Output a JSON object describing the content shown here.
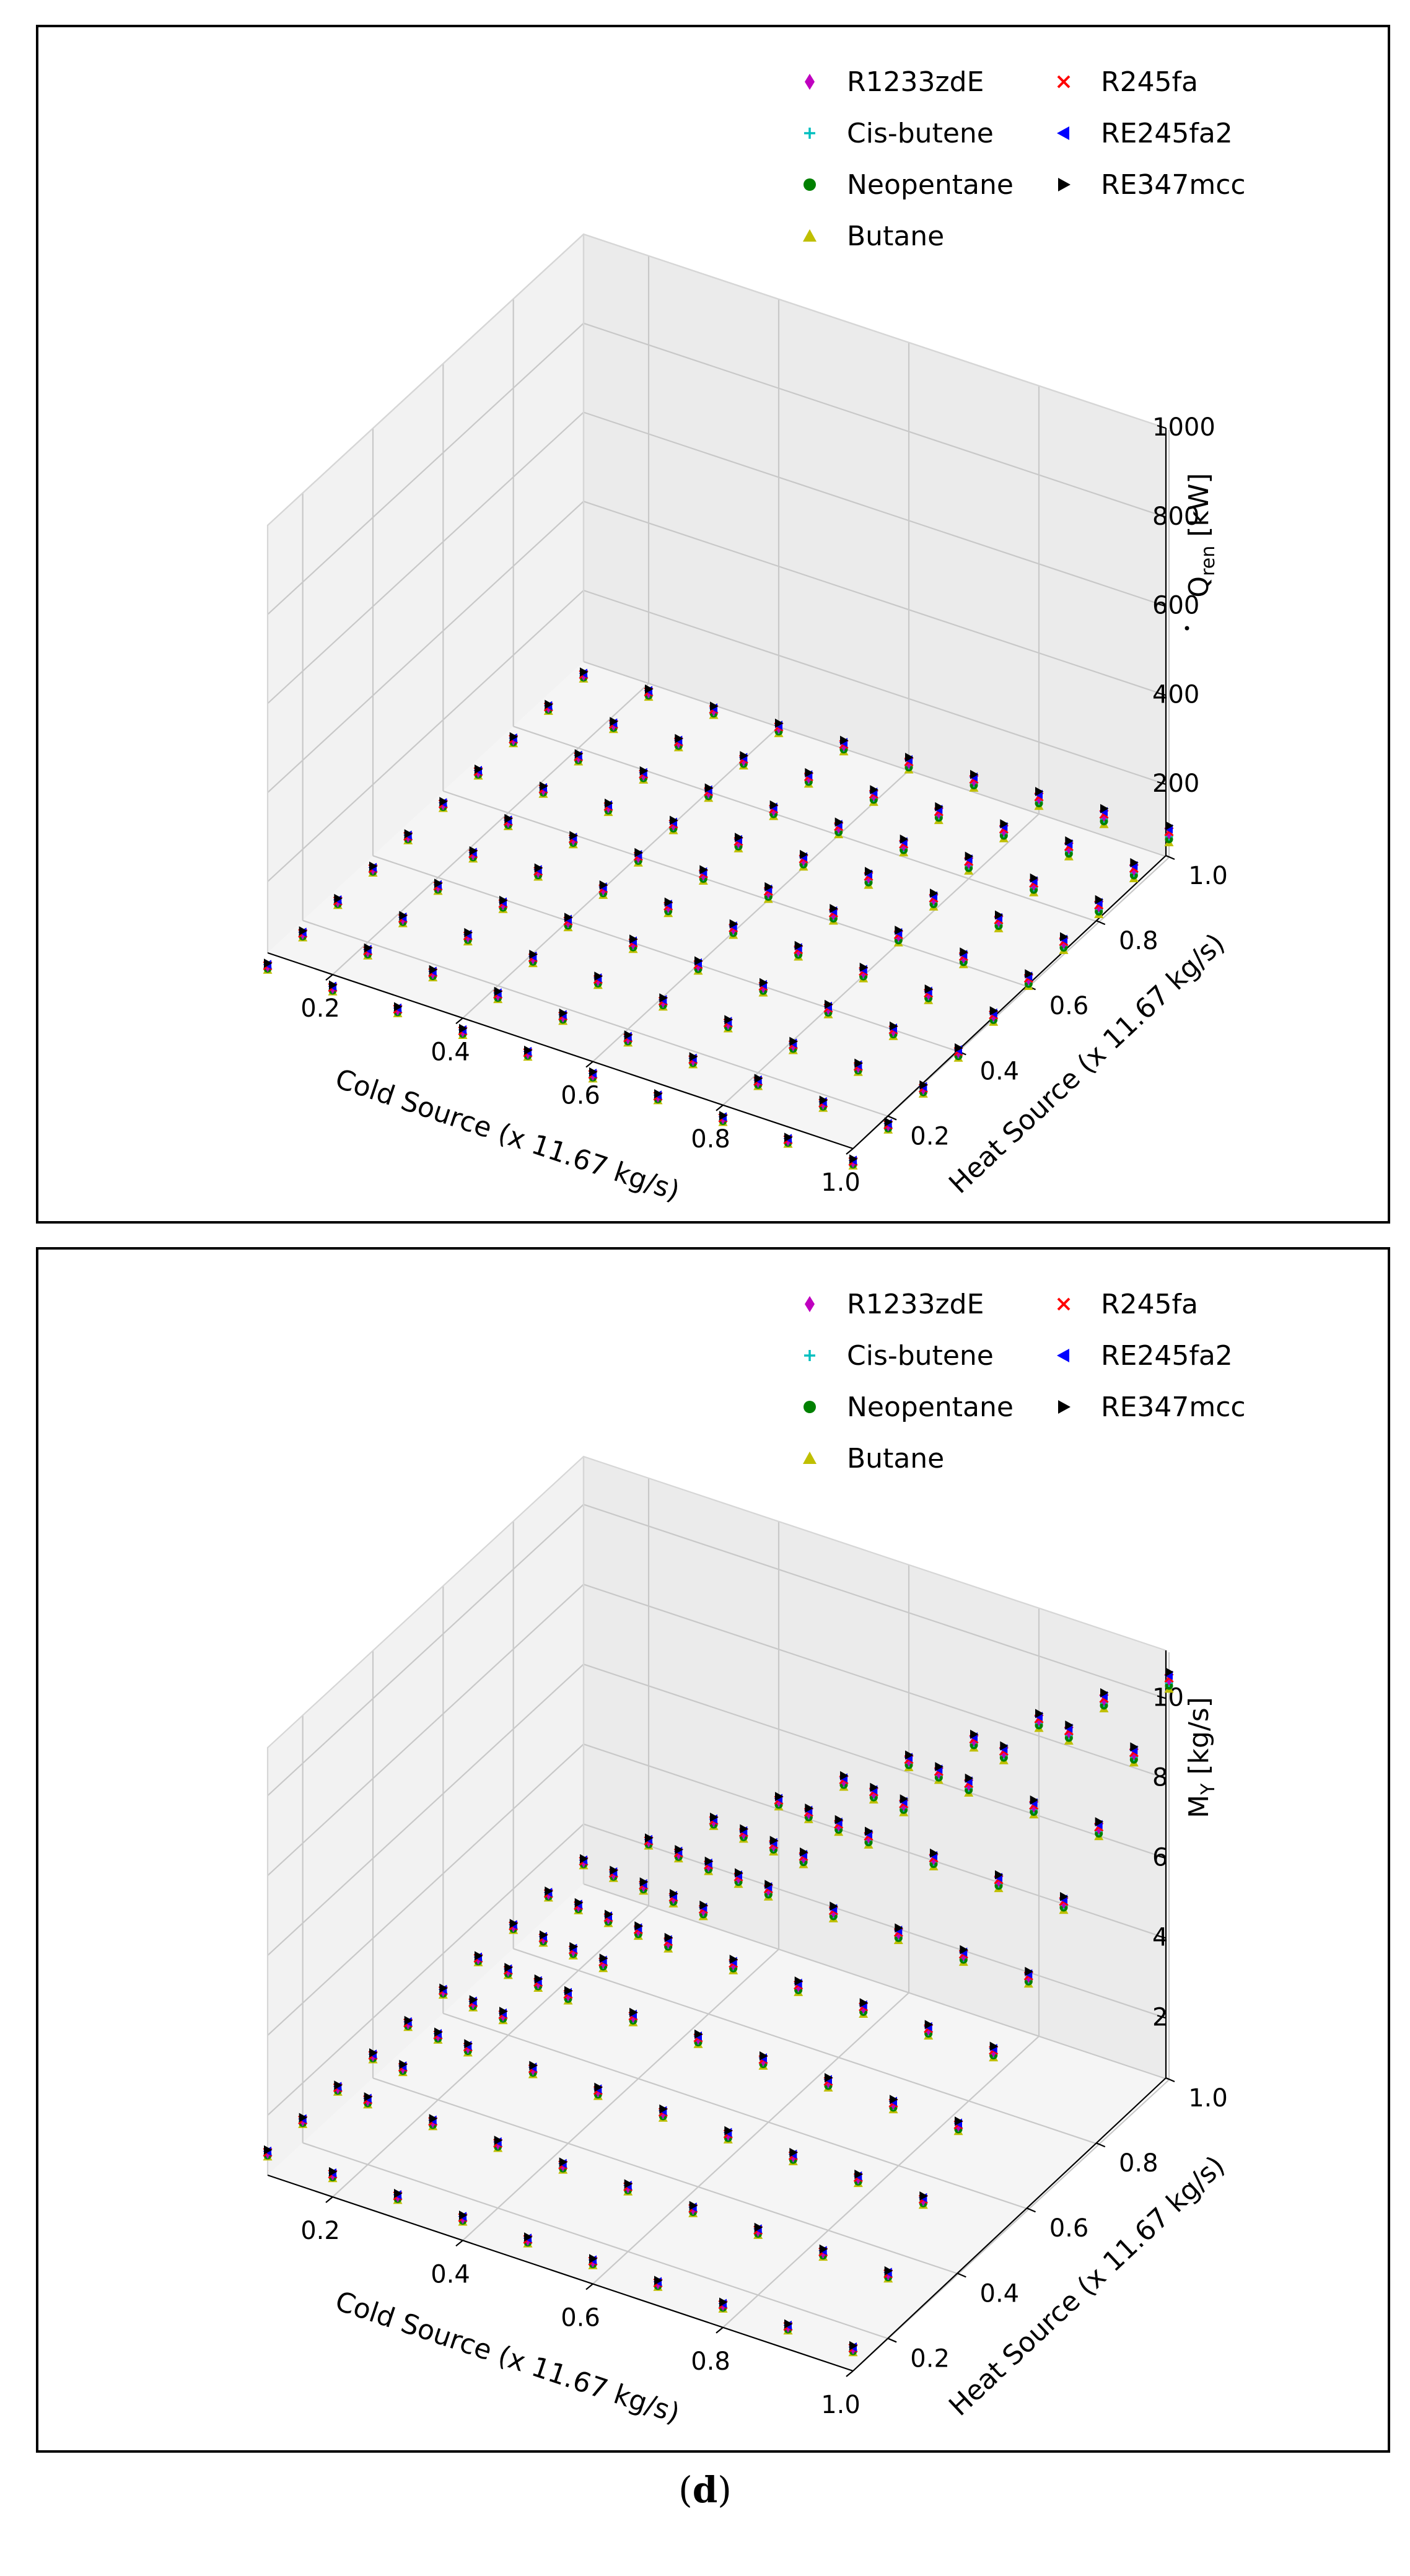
{
  "caption": {
    "open": "(",
    "letter": "d",
    "close": ")"
  },
  "colors": {
    "R1233zdE": "#bf00bf",
    "Cis-butene": "#00bfbf",
    "Neopentane": "#008000",
    "Butane": "#bfbf00",
    "R245fa": "#ff0000",
    "RE245fa2": "#0000ff",
    "RE347mcc": "#000000"
  },
  "chart_data": [
    {
      "type": "scatter3d",
      "title": "",
      "xlabel": "Cold Source (x 11.67 kg/s)",
      "ylabel": "Heat Source (x 11.67 kg/s)",
      "zlabel": "Q̇ren [kW]",
      "zlabel_main": "Q",
      "zlabel_sub": "ren",
      "zlabel_unit": "[kW]",
      "x_ticks": [
        "0.2",
        "0.4",
        "0.6",
        "0.8",
        "1.0"
      ],
      "y_ticks": [
        "0.2",
        "0.4",
        "0.6",
        "0.8",
        "1.0"
      ],
      "z_ticks": [
        "200",
        "400",
        "600",
        "800",
        "1000"
      ],
      "xlim": [
        0.1,
        1.0
      ],
      "ylim": [
        0.1,
        1.0
      ],
      "zlim": [
        40,
        1000
      ],
      "grid": true,
      "legend_position": "top-right",
      "legend": [
        "R1233zdE",
        "R245fa",
        "Cis-butene",
        "RE245fa2",
        "Neopentane",
        "RE347mcc",
        "Butane"
      ],
      "series_markers": {
        "R1233zdE": "diamond",
        "Cis-butene": "plus",
        "Neopentane": "circle",
        "Butane": "triangle-up",
        "R245fa": "x",
        "RE245fa2": "triangle-left",
        "RE347mcc": "triangle-right"
      },
      "x": [
        0.1,
        0.2,
        0.3,
        0.4,
        0.5,
        0.6,
        0.7,
        0.8,
        0.9,
        1.0
      ],
      "y": [
        0.1,
        0.2,
        0.3,
        0.4,
        0.5,
        0.6,
        0.7,
        0.8,
        0.9,
        1.0
      ],
      "z_rule": "z = 93 * min(x, y) (kW), nearly identical for all 7 fluids",
      "z_scale": 93
    },
    {
      "type": "scatter3d",
      "title": "",
      "xlabel": "Cold Source (x 11.67 kg/s)",
      "ylabel": "Heat Source (x 11.67 kg/s)",
      "zlabel": "MY [kg/s]",
      "zlabel_main": "M",
      "zlabel_sub": "Y",
      "zlabel_unit": "[kg/s]",
      "x_ticks": [
        "0.2",
        "0.4",
        "0.6",
        "0.8",
        "1.0"
      ],
      "y_ticks": [
        "0.2",
        "0.4",
        "0.6",
        "0.8",
        "1.0"
      ],
      "z_ticks": [
        "2",
        "4",
        "6",
        "8",
        "10"
      ],
      "xlim": [
        0.1,
        1.0
      ],
      "ylim": [
        0.1,
        1.0
      ],
      "zlim": [
        0.5,
        11.2
      ],
      "grid": true,
      "legend_position": "top-right",
      "legend": [
        "R1233zdE",
        "R245fa",
        "Cis-butene",
        "RE245fa2",
        "Neopentane",
        "RE347mcc",
        "Butane"
      ],
      "series_markers": {
        "R1233zdE": "diamond",
        "Cis-butene": "plus",
        "Neopentane": "circle",
        "Butane": "triangle-up",
        "R245fa": "x",
        "RE245fa2": "triangle-left",
        "RE347mcc": "triangle-right"
      },
      "x": [
        0.1,
        0.2,
        0.3,
        0.4,
        0.5,
        0.6,
        0.7,
        0.8,
        0.9,
        1.0
      ],
      "y": [
        0.1,
        0.2,
        0.3,
        0.4,
        0.5,
        0.6,
        0.7,
        0.8,
        0.9,
        1.0
      ],
      "z_rule": "z = 10.5 * min(x, y) (kg/s), nearly identical for all 7 fluids",
      "z_scale": 10.5
    }
  ]
}
